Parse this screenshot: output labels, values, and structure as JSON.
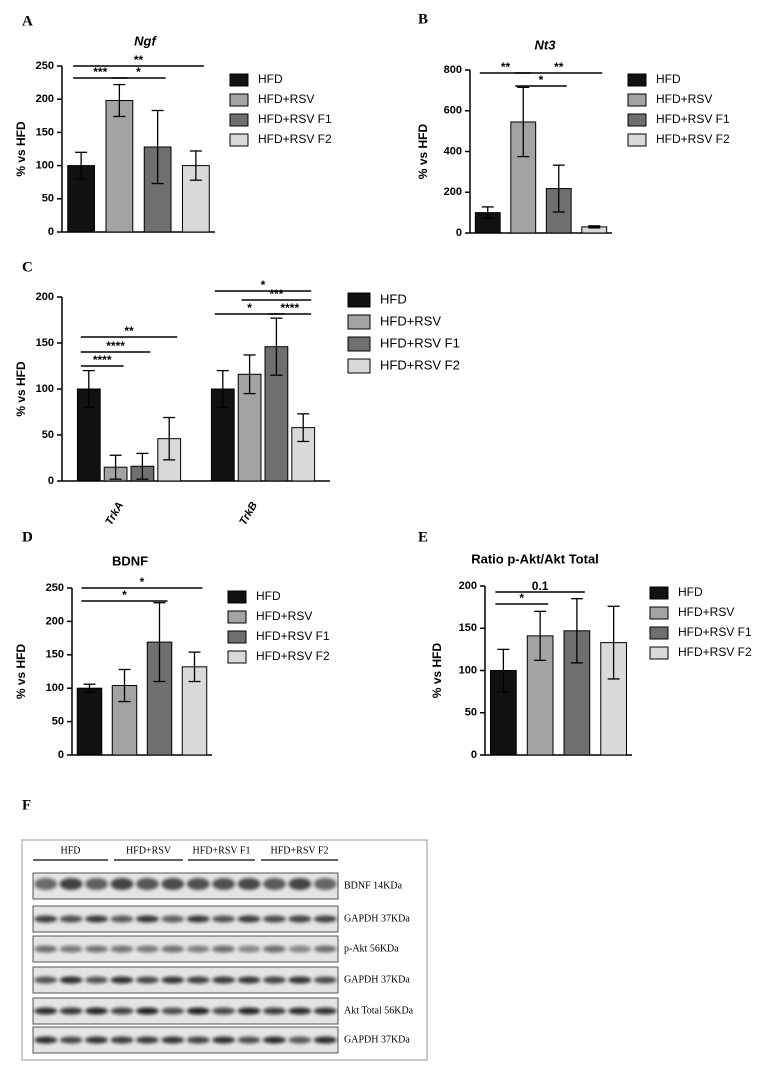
{
  "chart_data": [
    {
      "type": "bar",
      "panel": "A",
      "title": "Ngf",
      "ylabel": "% vs HFD",
      "categories": [
        "HFD",
        "HFD+RSV",
        "HFD+RSV F1",
        "HFD+RSV F2"
      ],
      "colors": [
        "#111111",
        "#a3a3a3",
        "#6f6f6f",
        "#d9d9d9"
      ],
      "values": [
        100,
        198,
        128,
        100
      ],
      "errors": [
        20,
        24,
        55,
        22
      ],
      "ylim": [
        0,
        250
      ],
      "yticks": [
        0,
        50,
        100,
        150,
        200,
        250
      ],
      "annotations": [
        {
          "text": "***",
          "between": [
            0,
            1
          ]
        },
        {
          "text": "*",
          "between": [
            1,
            2
          ]
        },
        {
          "text": "**",
          "between": [
            0,
            3
          ]
        }
      ]
    },
    {
      "type": "bar",
      "panel": "B",
      "title": "Nt3",
      "ylabel": "% vs HFD",
      "categories": [
        "HFD",
        "HFD+RSV",
        "HFD+RSV F1",
        "HFD+RSV F2"
      ],
      "colors": [
        "#111111",
        "#a3a3a3",
        "#6f6f6f",
        "#d9d9d9"
      ],
      "values": [
        100,
        545,
        218,
        30
      ],
      "errors": [
        28,
        170,
        115,
        5
      ],
      "ylim": [
        0,
        800
      ],
      "yticks": [
        0,
        200,
        400,
        600,
        800
      ],
      "annotations": [
        {
          "text": "**",
          "between": [
            0,
            1
          ]
        },
        {
          "text": "*",
          "between": [
            1,
            2
          ]
        },
        {
          "text": "**",
          "between": [
            1,
            3
          ]
        }
      ]
    },
    {
      "type": "bar",
      "panel": "C",
      "ylabel": "% vs HFD",
      "categories": [
        "TrkA",
        "TrkB"
      ],
      "series": [
        {
          "name": "HFD",
          "color": "#111111",
          "values": [
            100,
            100
          ],
          "errors": [
            20,
            20
          ]
        },
        {
          "name": "HFD+RSV",
          "color": "#a3a3a3",
          "values": [
            15,
            116
          ],
          "errors": [
            13,
            21
          ]
        },
        {
          "name": "HFD+RSV F1",
          "color": "#6f6f6f",
          "values": [
            16,
            146
          ],
          "errors": [
            14,
            31
          ]
        },
        {
          "name": "HFD+RSV F2",
          "color": "#d9d9d9",
          "values": [
            46,
            58
          ],
          "errors": [
            23,
            15
          ]
        }
      ],
      "ylim": [
        0,
        200
      ],
      "yticks": [
        0,
        50,
        100,
        150,
        200
      ],
      "annotations": [
        {
          "text": "****",
          "between": [
            [
              0,
              0
            ],
            [
              0,
              1
            ]
          ]
        },
        {
          "text": "****",
          "between": [
            [
              0,
              0
            ],
            [
              0,
              2
            ]
          ]
        },
        {
          "text": "**",
          "between": [
            [
              0,
              0
            ],
            [
              0,
              3
            ]
          ]
        },
        {
          "text": "*",
          "between": [
            [
              1,
              0
            ],
            [
              1,
              3
            ]
          ]
        },
        {
          "text": "***",
          "between": [
            [
              1,
              1
            ],
            [
              1,
              3
            ]
          ]
        },
        {
          "text": "*",
          "between": [
            [
              1,
              0
            ],
            [
              1,
              2
            ]
          ]
        },
        {
          "text": "****",
          "between": [
            [
              1,
              2
            ],
            [
              1,
              3
            ]
          ]
        }
      ]
    },
    {
      "type": "bar",
      "panel": "D",
      "title": "BDNF",
      "ylabel": "% vs HFD",
      "categories": [
        "HFD",
        "HFD+RSV",
        "HFD+RSV F1",
        "HFD+RSV F2"
      ],
      "colors": [
        "#111111",
        "#a3a3a3",
        "#6f6f6f",
        "#d9d9d9"
      ],
      "values": [
        100,
        104,
        169,
        132
      ],
      "errors": [
        6,
        24,
        59,
        22
      ],
      "ylim": [
        0,
        250
      ],
      "yticks": [
        0,
        50,
        100,
        150,
        200,
        250
      ],
      "annotations": [
        {
          "text": "*",
          "between": [
            0,
            2
          ]
        },
        {
          "text": "*",
          "between": [
            0,
            3
          ]
        }
      ]
    },
    {
      "type": "bar",
      "panel": "E",
      "title": "Ratio p-Akt/Akt Total",
      "ylabel": "% vs HFD",
      "categories": [
        "HFD",
        "HFD+RSV",
        "HFD+RSV F1",
        "HFD+RSV F2"
      ],
      "colors": [
        "#111111",
        "#a3a3a3",
        "#6f6f6f",
        "#d9d9d9"
      ],
      "values": [
        100,
        141,
        147,
        133
      ],
      "errors": [
        25,
        29,
        38,
        43
      ],
      "ylim": [
        0,
        200
      ],
      "yticks": [
        0,
        50,
        100,
        150,
        200
      ],
      "annotations": [
        {
          "text": "*",
          "between": [
            0,
            1
          ]
        },
        {
          "text": "0.1",
          "between": [
            0,
            2
          ]
        }
      ]
    }
  ],
  "blot": {
    "panel": "F",
    "groups": [
      "HFD",
      "HFD+RSV",
      "HFD+RSV F1",
      "HFD+RSV F2"
    ],
    "rows": [
      "BDNF 14KDa",
      "GAPDH 37KDa",
      "p-Akt 56KDa",
      "GAPDH 37KDa",
      "Akt Total 56KDa",
      "GAPDH 37KDa"
    ]
  }
}
